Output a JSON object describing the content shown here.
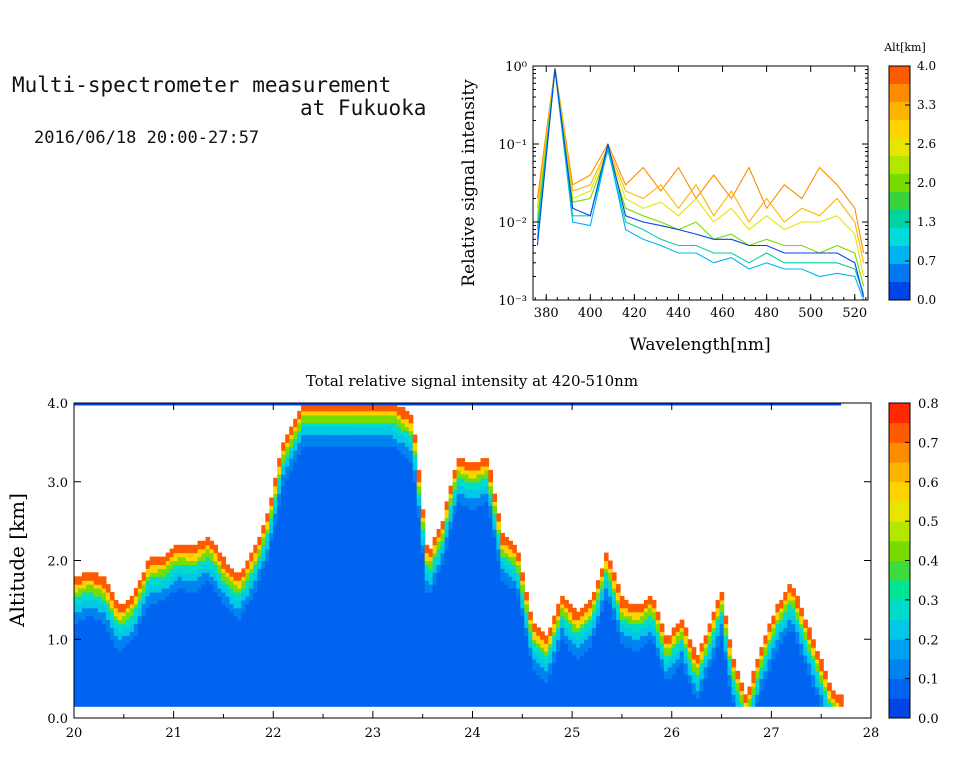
{
  "header": {
    "title_line1": "Multi-spectrometer measurement",
    "title_line2": "at Fukuoka",
    "datetime": "2016/06/18 20:00-27:57"
  },
  "chart_data": [
    {
      "type": "line",
      "title": "",
      "xlabel": "Wavelength[nm]",
      "ylabel": "Relative signal intensity",
      "xlim": [
        374,
        526
      ],
      "ylim": [
        0.001,
        1
      ],
      "yscale": "log",
      "x_ticks": [
        "380",
        "400",
        "420",
        "440",
        "460",
        "480",
        "500",
        "520"
      ],
      "y_ticks": [
        "10⁰",
        "10⁻¹",
        "10⁻²",
        "10⁻³"
      ],
      "x": [
        376,
        384,
        392,
        400,
        408,
        416,
        424,
        432,
        440,
        448,
        456,
        464,
        472,
        480,
        488,
        496,
        504,
        512,
        520,
        524
      ],
      "colorbar": {
        "title": "Alt[km]",
        "ticks": [
          "4.0",
          "3.3",
          "2.6",
          "2.0",
          "1.3",
          "0.7",
          "0.0"
        ],
        "colors": [
          "#ff5a00",
          "#ff8c00",
          "#ffb400",
          "#ffd200",
          "#e6e600",
          "#b4e600",
          "#78dc00",
          "#3cd23c",
          "#00d2a0",
          "#00dcdc",
          "#00b4f0",
          "#0078f0",
          "#0046e6"
        ]
      },
      "series": [
        {
          "color": "#ff8c00",
          "values": [
            0.02,
            0.95,
            0.03,
            0.04,
            0.1,
            0.03,
            0.05,
            0.025,
            0.05,
            0.02,
            0.04,
            0.02,
            0.05,
            0.015,
            0.03,
            0.02,
            0.05,
            0.03,
            0.015,
            0.004
          ]
        },
        {
          "color": "#ffb400",
          "values": [
            0.015,
            0.92,
            0.025,
            0.03,
            0.09,
            0.025,
            0.02,
            0.03,
            0.015,
            0.03,
            0.012,
            0.025,
            0.01,
            0.02,
            0.01,
            0.015,
            0.012,
            0.02,
            0.01,
            0.003
          ]
        },
        {
          "color": "#e6e600",
          "values": [
            0.012,
            0.9,
            0.02,
            0.025,
            0.085,
            0.02,
            0.015,
            0.018,
            0.012,
            0.02,
            0.01,
            0.015,
            0.008,
            0.012,
            0.008,
            0.01,
            0.01,
            0.012,
            0.007,
            0.002
          ]
        },
        {
          "color": "#78dc00",
          "values": [
            0.01,
            0.9,
            0.018,
            0.02,
            0.08,
            0.015,
            0.012,
            0.01,
            0.008,
            0.01,
            0.006,
            0.007,
            0.005,
            0.006,
            0.005,
            0.005,
            0.004,
            0.005,
            0.004,
            0.0015
          ]
        },
        {
          "color": "#00d2a0",
          "values": [
            0.008,
            0.9,
            0.012,
            0.012,
            0.085,
            0.01,
            0.008,
            0.006,
            0.005,
            0.005,
            0.004,
            0.004,
            0.003,
            0.004,
            0.003,
            0.003,
            0.003,
            0.003,
            0.0025,
            0.0012
          ]
        },
        {
          "color": "#00b4f0",
          "values": [
            0.006,
            0.9,
            0.01,
            0.009,
            0.09,
            0.008,
            0.006,
            0.005,
            0.004,
            0.004,
            0.003,
            0.0035,
            0.0025,
            0.003,
            0.0025,
            0.0025,
            0.002,
            0.0022,
            0.002,
            0.001
          ]
        },
        {
          "color": "#0046e6",
          "values": [
            0.005,
            0.92,
            0.015,
            0.012,
            0.1,
            0.012,
            0.01,
            0.009,
            0.008,
            0.007,
            0.006,
            0.006,
            0.005,
            0.005,
            0.004,
            0.004,
            0.004,
            0.004,
            0.003,
            0.0011
          ]
        }
      ]
    },
    {
      "type": "heatmap",
      "title": "Total relative signal intensity at 420-510nm",
      "xlabel": "",
      "ylabel": "Altitude [km]",
      "xlim": [
        20,
        28
      ],
      "ylim": [
        0,
        4
      ],
      "x_ticks": [
        "20",
        "21",
        "22",
        "23",
        "24",
        "25",
        "26",
        "27",
        "28"
      ],
      "y_ticks": [
        "0.0",
        "1.0",
        "2.0",
        "3.0",
        "4.0"
      ],
      "colorbar": {
        "ticks": [
          "0.8",
          "0.7",
          "0.6",
          "0.5",
          "0.4",
          "0.3",
          "0.2",
          "0.1",
          "0.0"
        ],
        "range": [
          0,
          0.8
        ],
        "colors": [
          "#0046e6",
          "#0064f0",
          "#0082f0",
          "#00a0f0",
          "#00c8e6",
          "#00dcc8",
          "#00e696",
          "#3cdc3c",
          "#78dc00",
          "#b4e600",
          "#e6e600",
          "#ffd200",
          "#ffb400",
          "#ff8c00",
          "#ff5a00",
          "#ff2800"
        ]
      },
      "cloud_base_km": [
        {
          "t": 20.0,
          "h": 1.75
        },
        {
          "t": 20.15,
          "h": 1.85
        },
        {
          "t": 20.3,
          "h": 1.75
        },
        {
          "t": 20.45,
          "h": 1.4
        },
        {
          "t": 20.6,
          "h": 1.55
        },
        {
          "t": 20.75,
          "h": 2.0
        },
        {
          "t": 20.9,
          "h": 2.05
        },
        {
          "t": 21.05,
          "h": 2.2
        },
        {
          "t": 21.2,
          "h": 2.15
        },
        {
          "t": 21.35,
          "h": 2.3
        },
        {
          "t": 21.5,
          "h": 2.0
        },
        {
          "t": 21.65,
          "h": 1.8
        },
        {
          "t": 21.8,
          "h": 2.1
        },
        {
          "t": 21.95,
          "h": 2.6
        },
        {
          "t": 22.1,
          "h": 3.5
        },
        {
          "t": 22.3,
          "h": 4.0
        },
        {
          "t": 22.6,
          "h": 4.0
        },
        {
          "t": 22.9,
          "h": 4.0
        },
        {
          "t": 23.2,
          "h": 4.0
        },
        {
          "t": 23.4,
          "h": 3.8
        },
        {
          "t": 23.55,
          "h": 2.05
        },
        {
          "t": 23.7,
          "h": 2.5
        },
        {
          "t": 23.85,
          "h": 3.3
        },
        {
          "t": 24.0,
          "h": 3.2
        },
        {
          "t": 24.15,
          "h": 3.3
        },
        {
          "t": 24.3,
          "h": 2.3
        },
        {
          "t": 24.45,
          "h": 2.15
        },
        {
          "t": 24.6,
          "h": 1.2
        },
        {
          "t": 24.75,
          "h": 1.0
        },
        {
          "t": 24.9,
          "h": 1.55
        },
        {
          "t": 25.05,
          "h": 1.3
        },
        {
          "t": 25.2,
          "h": 1.5
        },
        {
          "t": 25.35,
          "h": 2.1
        },
        {
          "t": 25.5,
          "h": 1.5
        },
        {
          "t": 25.65,
          "h": 1.4
        },
        {
          "t": 25.8,
          "h": 1.55
        },
        {
          "t": 25.95,
          "h": 1.0
        },
        {
          "t": 26.1,
          "h": 1.25
        },
        {
          "t": 26.25,
          "h": 0.75
        },
        {
          "t": 26.4,
          "h": 1.25
        },
        {
          "t": 26.5,
          "h": 1.6
        },
        {
          "t": 26.6,
          "h": 0.8
        },
        {
          "t": 26.75,
          "h": 0.25
        },
        {
          "t": 26.9,
          "h": 0.9
        },
        {
          "t": 27.05,
          "h": 1.4
        },
        {
          "t": 27.2,
          "h": 1.7
        },
        {
          "t": 27.35,
          "h": 1.2
        },
        {
          "t": 27.5,
          "h": 0.7
        },
        {
          "t": 27.6,
          "h": 0.35
        },
        {
          "t": 27.7,
          "h": 0.25
        }
      ],
      "data_start_time": 20.0,
      "data_end_time": 27.7,
      "data_bottom_km": 0.15
    }
  ]
}
